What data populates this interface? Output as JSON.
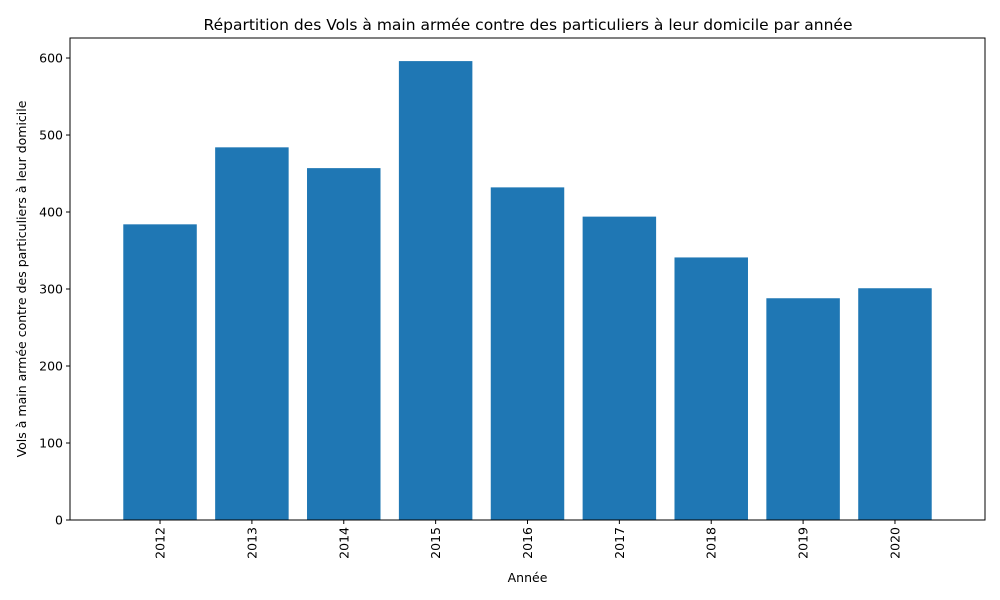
{
  "chart_data": {
    "type": "bar",
    "title": "Répartition des Vols à main armée contre des particuliers à leur domicile par année",
    "xlabel": "Année",
    "ylabel": "Vols à main armée contre des particuliers à leur domicile",
    "categories": [
      "2012",
      "2013",
      "2014",
      "2015",
      "2016",
      "2017",
      "2018",
      "2019",
      "2020"
    ],
    "values": [
      384,
      484,
      457,
      596,
      432,
      394,
      341,
      288,
      301
    ],
    "ylim": [
      0,
      626
    ],
    "yticks": [
      0,
      100,
      200,
      300,
      400,
      500,
      600
    ],
    "bar_color": "#1f77b4",
    "grid": false,
    "legend": "none",
    "xtick_rotation": "vertical"
  }
}
